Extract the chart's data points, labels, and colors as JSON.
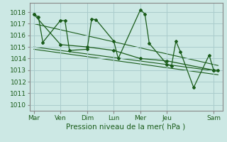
{
  "xlabel": "Pression niveau de la mer( hPa )",
  "background_color": "#cce8e4",
  "grid_color": "#aacccc",
  "line_color": "#1a5c1a",
  "ylim": [
    1009.5,
    1018.8
  ],
  "yticks": [
    1010,
    1011,
    1012,
    1013,
    1014,
    1015,
    1016,
    1017,
    1018
  ],
  "x_day_labels": [
    "Mar",
    "Ven",
    "Dim",
    "Lun",
    "Mer",
    "Jeu",
    "Sam"
  ],
  "x_day_positions": [
    0,
    24,
    48,
    72,
    96,
    120,
    162
  ],
  "xlim": [
    -4,
    170
  ],
  "series1_x": [
    0,
    4,
    8,
    24,
    28,
    32,
    48,
    52,
    56,
    72,
    76,
    96,
    100,
    104,
    120,
    124,
    128,
    132,
    144,
    158,
    162,
    166
  ],
  "series1_y": [
    1017.8,
    1017.6,
    1015.4,
    1017.3,
    1017.25,
    1014.7,
    1014.8,
    1017.4,
    1017.35,
    1015.5,
    1014.0,
    1018.2,
    1017.85,
    1015.3,
    1013.5,
    1013.35,
    1015.5,
    1014.6,
    1011.5,
    1014.3,
    1013.0,
    1013.0
  ],
  "series2_x": [
    0,
    24,
    48,
    72,
    96,
    120,
    162
  ],
  "series2_y": [
    1017.8,
    1015.2,
    1015.0,
    1014.7,
    1014.0,
    1013.8,
    1013.0
  ],
  "trend1_x": [
    0,
    166
  ],
  "trend1_y": [
    1017.0,
    1013.4
  ],
  "trend2_x": [
    0,
    166
  ],
  "trend2_y": [
    1015.0,
    1012.9
  ],
  "trend3_x": [
    0,
    166
  ],
  "trend3_y": [
    1014.8,
    1012.6
  ]
}
